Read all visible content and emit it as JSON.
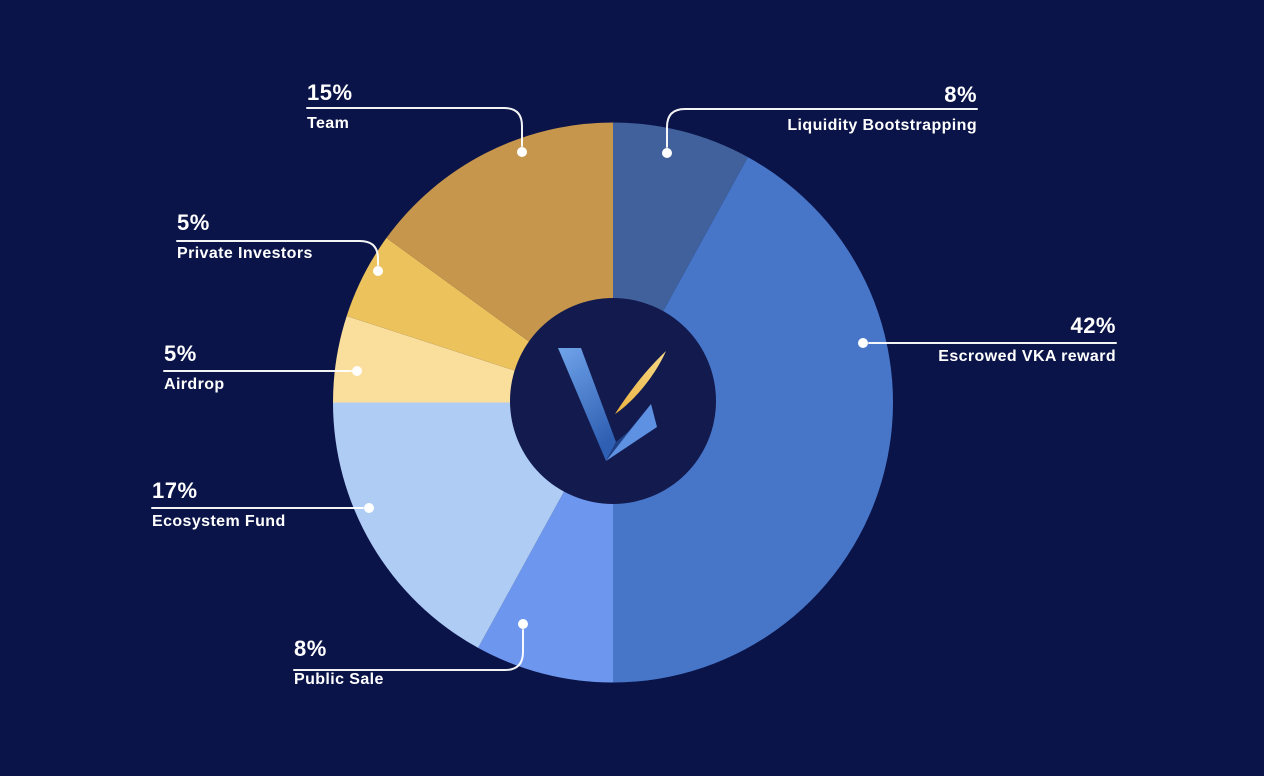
{
  "page": {
    "background_color": "#0B1448",
    "text_color": "#FFFFFF"
  },
  "chart_data": {
    "type": "pie",
    "variant": "donut",
    "title": "",
    "start_angle_deg": 0,
    "direction": "clockwise",
    "legend_position": "callout-labels",
    "grid": false,
    "center_logo": "vka-v-spark-logo",
    "hole_color": "#121A4E",
    "callout_line_color": "#FFFFFF",
    "segments": [
      {
        "label": "Liquidity Bootstrapping",
        "value_pct": 8,
        "pct_label": "8%",
        "color": "#41619C"
      },
      {
        "label": "Escrowed VKA reward",
        "value_pct": 42,
        "pct_label": "42%",
        "color": "#4776C9"
      },
      {
        "label": "Public Sale",
        "value_pct": 8,
        "pct_label": "8%",
        "color": "#6D96EE"
      },
      {
        "label": "Ecosystem Fund",
        "value_pct": 17,
        "pct_label": "17%",
        "color": "#AFCCF4"
      },
      {
        "label": "Airdrop",
        "value_pct": 5,
        "pct_label": "5%",
        "color": "#FADE9B"
      },
      {
        "label": "Private Investors",
        "value_pct": 5,
        "pct_label": "5%",
        "color": "#ECC25D"
      },
      {
        "label": "Team",
        "value_pct": 15,
        "pct_label": "15%",
        "color": "#C5964C"
      }
    ],
    "logo_colors": {
      "v_gradient_top": "#6FA3E9",
      "v_gradient_bottom": "#2F5FB2",
      "fold_dark": "#1F4085",
      "arm_mid": "#3A6CC0",
      "arm_light": "#5E91E2",
      "spark_light": "#F6D988",
      "spark_deep": "#EBB33F"
    }
  }
}
